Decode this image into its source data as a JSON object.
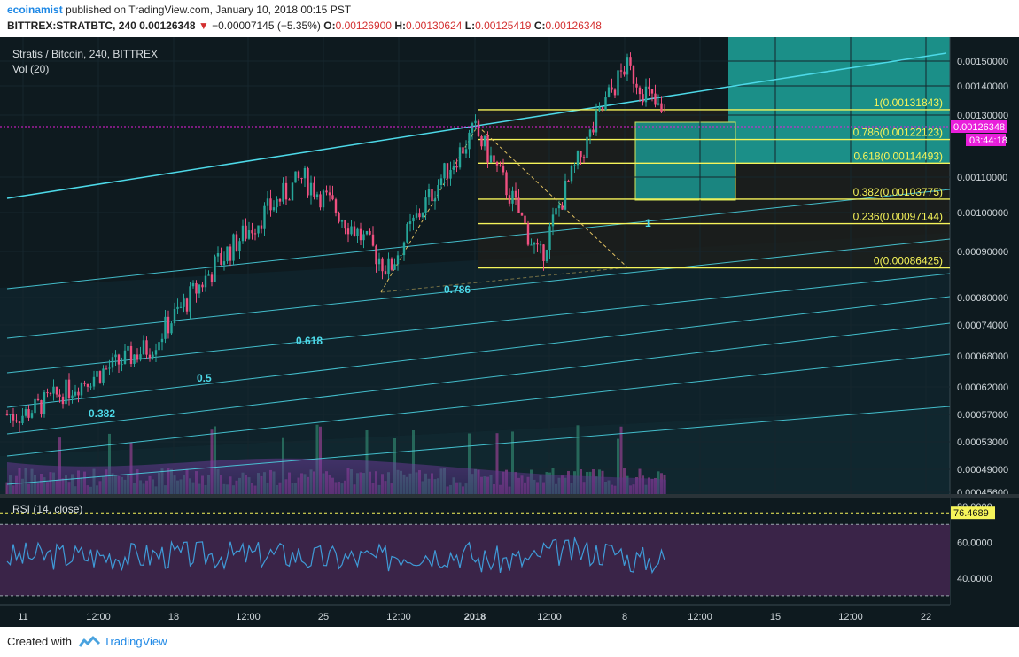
{
  "header": {
    "author": "ecoinamist",
    "published_text": " published on TradingView.com, January 10, 2018 00:15 PST",
    "symbol": "BITTREX:STRATBTC, 240",
    "last": "0.00126348",
    "change": "−0.00007145 (−5.35%)",
    "o_label": "O:",
    "o_value": "0.00126900",
    "h_label": "H:",
    "h_value": "0.00130624",
    "l_label": "L:",
    "l_value": "0.00125419",
    "c_label": "C:",
    "c_value": "0.00126348"
  },
  "footer": {
    "created_with": "Created with",
    "brand": "TradingView"
  },
  "colors": {
    "background": "#0e1a1f",
    "bull": "#26a69a",
    "bear": "#ef5080",
    "fib": "#f6f45a",
    "channel": "#4dd9e8",
    "rsi": "#3f9bd8",
    "rsi_band": "#3a2448",
    "volume": "#7b3fa8",
    "price_tag": "#e91edb"
  },
  "chart_data": [
    {
      "type": "candlestick",
      "title": "Stratis / Bitcoin, 240, BITTREX",
      "indicator": "Vol (20)",
      "yaxis_ticks": [
        "0.00150000",
        "0.00140000",
        "0.00130000",
        "0.00110000",
        "0.00100000",
        "0.00090000",
        "0.00080000",
        "0.00074000",
        "0.00068000",
        "0.00062000",
        "0.00057000",
        "0.00053000",
        "0.00049000",
        "0.00045600"
      ],
      "xaxis_ticks": [
        "11",
        "12:00",
        "18",
        "12:00",
        "25",
        "12:00",
        "2018",
        "12:00",
        "8",
        "12:00",
        "15",
        "12:00",
        "22"
      ],
      "last_price": "0.00126348",
      "countdown": "03:44:18",
      "fib_levels": [
        {
          "label": "1(0.00131843)",
          "value": 0.00131843
        },
        {
          "label": "0.786(0.00122123)",
          "value": 0.00122123
        },
        {
          "label": "0.618(0.00114493)",
          "value": 0.00114493
        },
        {
          "label": "0.382(0.00103775)",
          "value": 0.00103775
        },
        {
          "label": "0.236(0.00097144)",
          "value": 0.00097144
        },
        {
          "label": "0(0.00086425)",
          "value": 0.00086425
        }
      ],
      "fan_labels": [
        "0.786",
        "0.618",
        "0.5",
        "0.382",
        "1"
      ],
      "key_points": [
        {
          "date": "2017-12-11",
          "close": 0.00057
        },
        {
          "date": "2017-12-17",
          "close": 0.0007
        },
        {
          "date": "2017-12-24",
          "close": 0.0011
        },
        {
          "date": "2017-12-28",
          "close": 0.00086
        },
        {
          "date": "2018-01-01",
          "close": 0.00125
        },
        {
          "date": "2018-01-04",
          "close": 0.00088
        },
        {
          "date": "2018-01-08",
          "close": 0.00148
        },
        {
          "date": "2018-01-10",
          "close": 0.00126348
        }
      ]
    },
    {
      "type": "line",
      "title": "RSI (14, close)",
      "last_value": "76.4689",
      "yaxis_ticks": [
        "80.0000",
        "60.0000",
        "40.0000"
      ],
      "levels": [
        70,
        30
      ],
      "range": [
        25,
        85
      ]
    }
  ]
}
